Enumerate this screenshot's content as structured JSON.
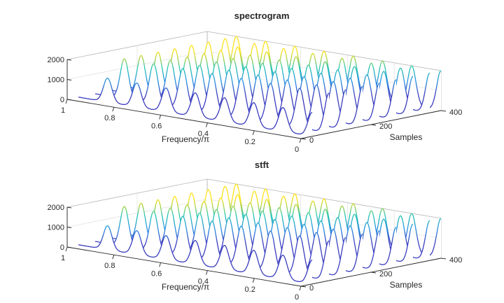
{
  "chart_data": [
    {
      "type": "waterfall",
      "title": "spectrogram",
      "xlabel": "Frequency/π",
      "ylabel": "Samples",
      "zlabel": "",
      "xlim": [
        0,
        1
      ],
      "ylim": [
        0,
        400
      ],
      "zlim": [
        0,
        2000
      ],
      "xticks": [
        "1",
        "0.8",
        "0.6",
        "0.4",
        "0.2",
        "0"
      ],
      "yticks": [
        "0",
        "200",
        "400"
      ],
      "zticks": [
        "0",
        "1000",
        "2000"
      ],
      "grid": true,
      "colormap": "parula",
      "peak_frequencies": [
        0.875,
        0.75,
        0.625,
        0.5,
        0.375,
        0.25,
        0.125,
        0.0
      ],
      "peak_height": 2000,
      "peak_width": 0.018,
      "time_slices": [
        32,
        80,
        128,
        176,
        224,
        272,
        320,
        368,
        400
      ]
    },
    {
      "type": "waterfall",
      "title": "stft",
      "xlabel": "Frequency/π",
      "ylabel": "Samples",
      "zlabel": "",
      "xlim": [
        0,
        1
      ],
      "ylim": [
        0,
        400
      ],
      "zlim": [
        0,
        2000
      ],
      "xticks": [
        "1",
        "0.8",
        "0.6",
        "0.4",
        "0.2",
        "0"
      ],
      "yticks": [
        "0",
        "200",
        "400"
      ],
      "zticks": [
        "0",
        "1000",
        "2000"
      ],
      "grid": true,
      "colormap": "parula",
      "peak_frequencies": [
        0.875,
        0.75,
        0.625,
        0.5,
        0.375,
        0.25,
        0.125,
        0.0
      ],
      "peak_height": 2000,
      "peak_width": 0.018,
      "time_slices": [
        32,
        80,
        128,
        176,
        224,
        272,
        320,
        368,
        400
      ]
    }
  ]
}
